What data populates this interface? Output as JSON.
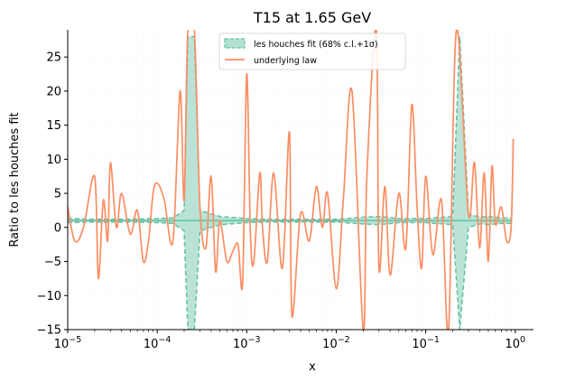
{
  "chart_data": {
    "type": "line",
    "title": "T15 at 1.65 GeV",
    "xlabel": "x",
    "ylabel": "Ratio to les houches fit",
    "xscale": "log",
    "xlim": [
      1e-05,
      1.6
    ],
    "ylim": [
      -15,
      29
    ],
    "x_ticks": [
      {
        "value": 1e-05,
        "base": "10",
        "exp": "−5"
      },
      {
        "value": 0.0001,
        "base": "10",
        "exp": "−4"
      },
      {
        "value": 0.001,
        "base": "10",
        "exp": "−3"
      },
      {
        "value": 0.01,
        "base": "10",
        "exp": "−2"
      },
      {
        "value": 0.1,
        "base": "10",
        "exp": "−1"
      },
      {
        "value": 1,
        "base": "10",
        "exp": "0"
      }
    ],
    "y_ticks": [
      "−15",
      "−10",
      "−5",
      "0",
      "5",
      "10",
      "15",
      "20",
      "25"
    ],
    "y_tick_values": [
      -15,
      -10,
      -5,
      0,
      5,
      10,
      15,
      20,
      25
    ],
    "grid": true,
    "legend_position": "top-center",
    "colors": {
      "band": "#66c2a5",
      "law": "#fc8d62"
    },
    "poles": [
      0.00024,
      0.0255,
      0.27
    ],
    "series": [
      {
        "name": "les houches fit (68% c.l.+1σ)",
        "kind": "band",
        "x": [
          1e-05,
          2e-05,
          5e-05,
          0.0001,
          0.00015,
          0.0002,
          0.00022,
          0.00026,
          0.0003,
          0.0005,
          0.001,
          0.002,
          0.005,
          0.01,
          0.02,
          0.03,
          0.05,
          0.1,
          0.2,
          0.24,
          0.3,
          0.4,
          0.5,
          0.7,
          0.9
        ],
        "upper": [
          1.3,
          1.2,
          1.2,
          1.3,
          1.4,
          2.5,
          28,
          28,
          2.5,
          1.6,
          1.3,
          1.2,
          1.2,
          1.2,
          1.5,
          1.6,
          1.3,
          1.3,
          1.6,
          28,
          2.0,
          1.5,
          1.6,
          1.4,
          1.4
        ],
        "lower": [
          0.7,
          0.8,
          0.8,
          0.7,
          0.6,
          -0.5,
          -15,
          -15,
          -0.5,
          0.4,
          0.7,
          0.8,
          0.8,
          0.8,
          0.5,
          0.4,
          0.7,
          0.7,
          0.4,
          -15,
          0.0,
          0.5,
          0.4,
          0.6,
          0.6
        ],
        "central": [
          1,
          1,
          1,
          1,
          1,
          1,
          1,
          1,
          1,
          1,
          1,
          1,
          1,
          1,
          1,
          1,
          1,
          1,
          1,
          1,
          1,
          1,
          1,
          1,
          1
        ]
      },
      {
        "name": "underlying law",
        "kind": "line",
        "x": [
          1e-05,
          1.2e-05,
          1.5e-05,
          2e-05,
          2.2e-05,
          2.5e-05,
          2.8e-05,
          3e-05,
          3.5e-05,
          4e-05,
          5e-05,
          6e-05,
          7e-05,
          8e-05,
          9e-05,
          0.0001,
          0.00012,
          0.00015,
          0.00018,
          0.0002,
          0.00022,
          0.00026,
          0.0003,
          0.00035,
          0.0004,
          0.00045,
          0.0005,
          0.0006,
          0.0007,
          0.0008,
          0.0009,
          0.001,
          0.0011,
          0.0012,
          0.0014,
          0.0015,
          0.0017,
          0.002,
          0.0025,
          0.003,
          0.0032,
          0.004,
          0.005,
          0.006,
          0.007,
          0.008,
          0.01,
          0.012,
          0.015,
          0.02,
          0.022,
          0.028,
          0.03,
          0.035,
          0.04,
          0.05,
          0.06,
          0.07,
          0.08,
          0.09,
          0.1,
          0.12,
          0.15,
          0.18,
          0.22,
          0.3,
          0.35,
          0.4,
          0.45,
          0.5,
          0.55,
          0.6,
          0.7,
          0.8,
          0.9,
          0.95
        ],
        "y": [
          3.0,
          -2.0,
          0.0,
          7.5,
          -7.5,
          4.0,
          -2.0,
          9.5,
          0.0,
          5.0,
          -1.0,
          2.5,
          -5.0,
          -2.0,
          5.0,
          6.5,
          4.0,
          -2.0,
          20.0,
          4.0,
          29.0,
          29.0,
          3.0,
          -3.0,
          7.5,
          -6.5,
          1.0,
          -5.0,
          -3.5,
          -2.5,
          -8.0,
          22.5,
          -1.0,
          -5.0,
          8.0,
          0.0,
          -5.0,
          8.0,
          -6.0,
          14.0,
          -13.0,
          2.0,
          -2.0,
          6.0,
          0.0,
          5.0,
          -9.0,
          4.0,
          20.0,
          -15.0,
          7.5,
          29.0,
          -6.0,
          6.0,
          -7.0,
          5.0,
          -3.0,
          18.0,
          3.0,
          -6.0,
          7.5,
          -4.0,
          4.0,
          -15.0,
          29.0,
          2.0,
          9.5,
          -3.0,
          8.0,
          -5.0,
          9.0,
          0.5,
          3.0,
          -2.0,
          0.0,
          13.0
        ]
      }
    ]
  }
}
